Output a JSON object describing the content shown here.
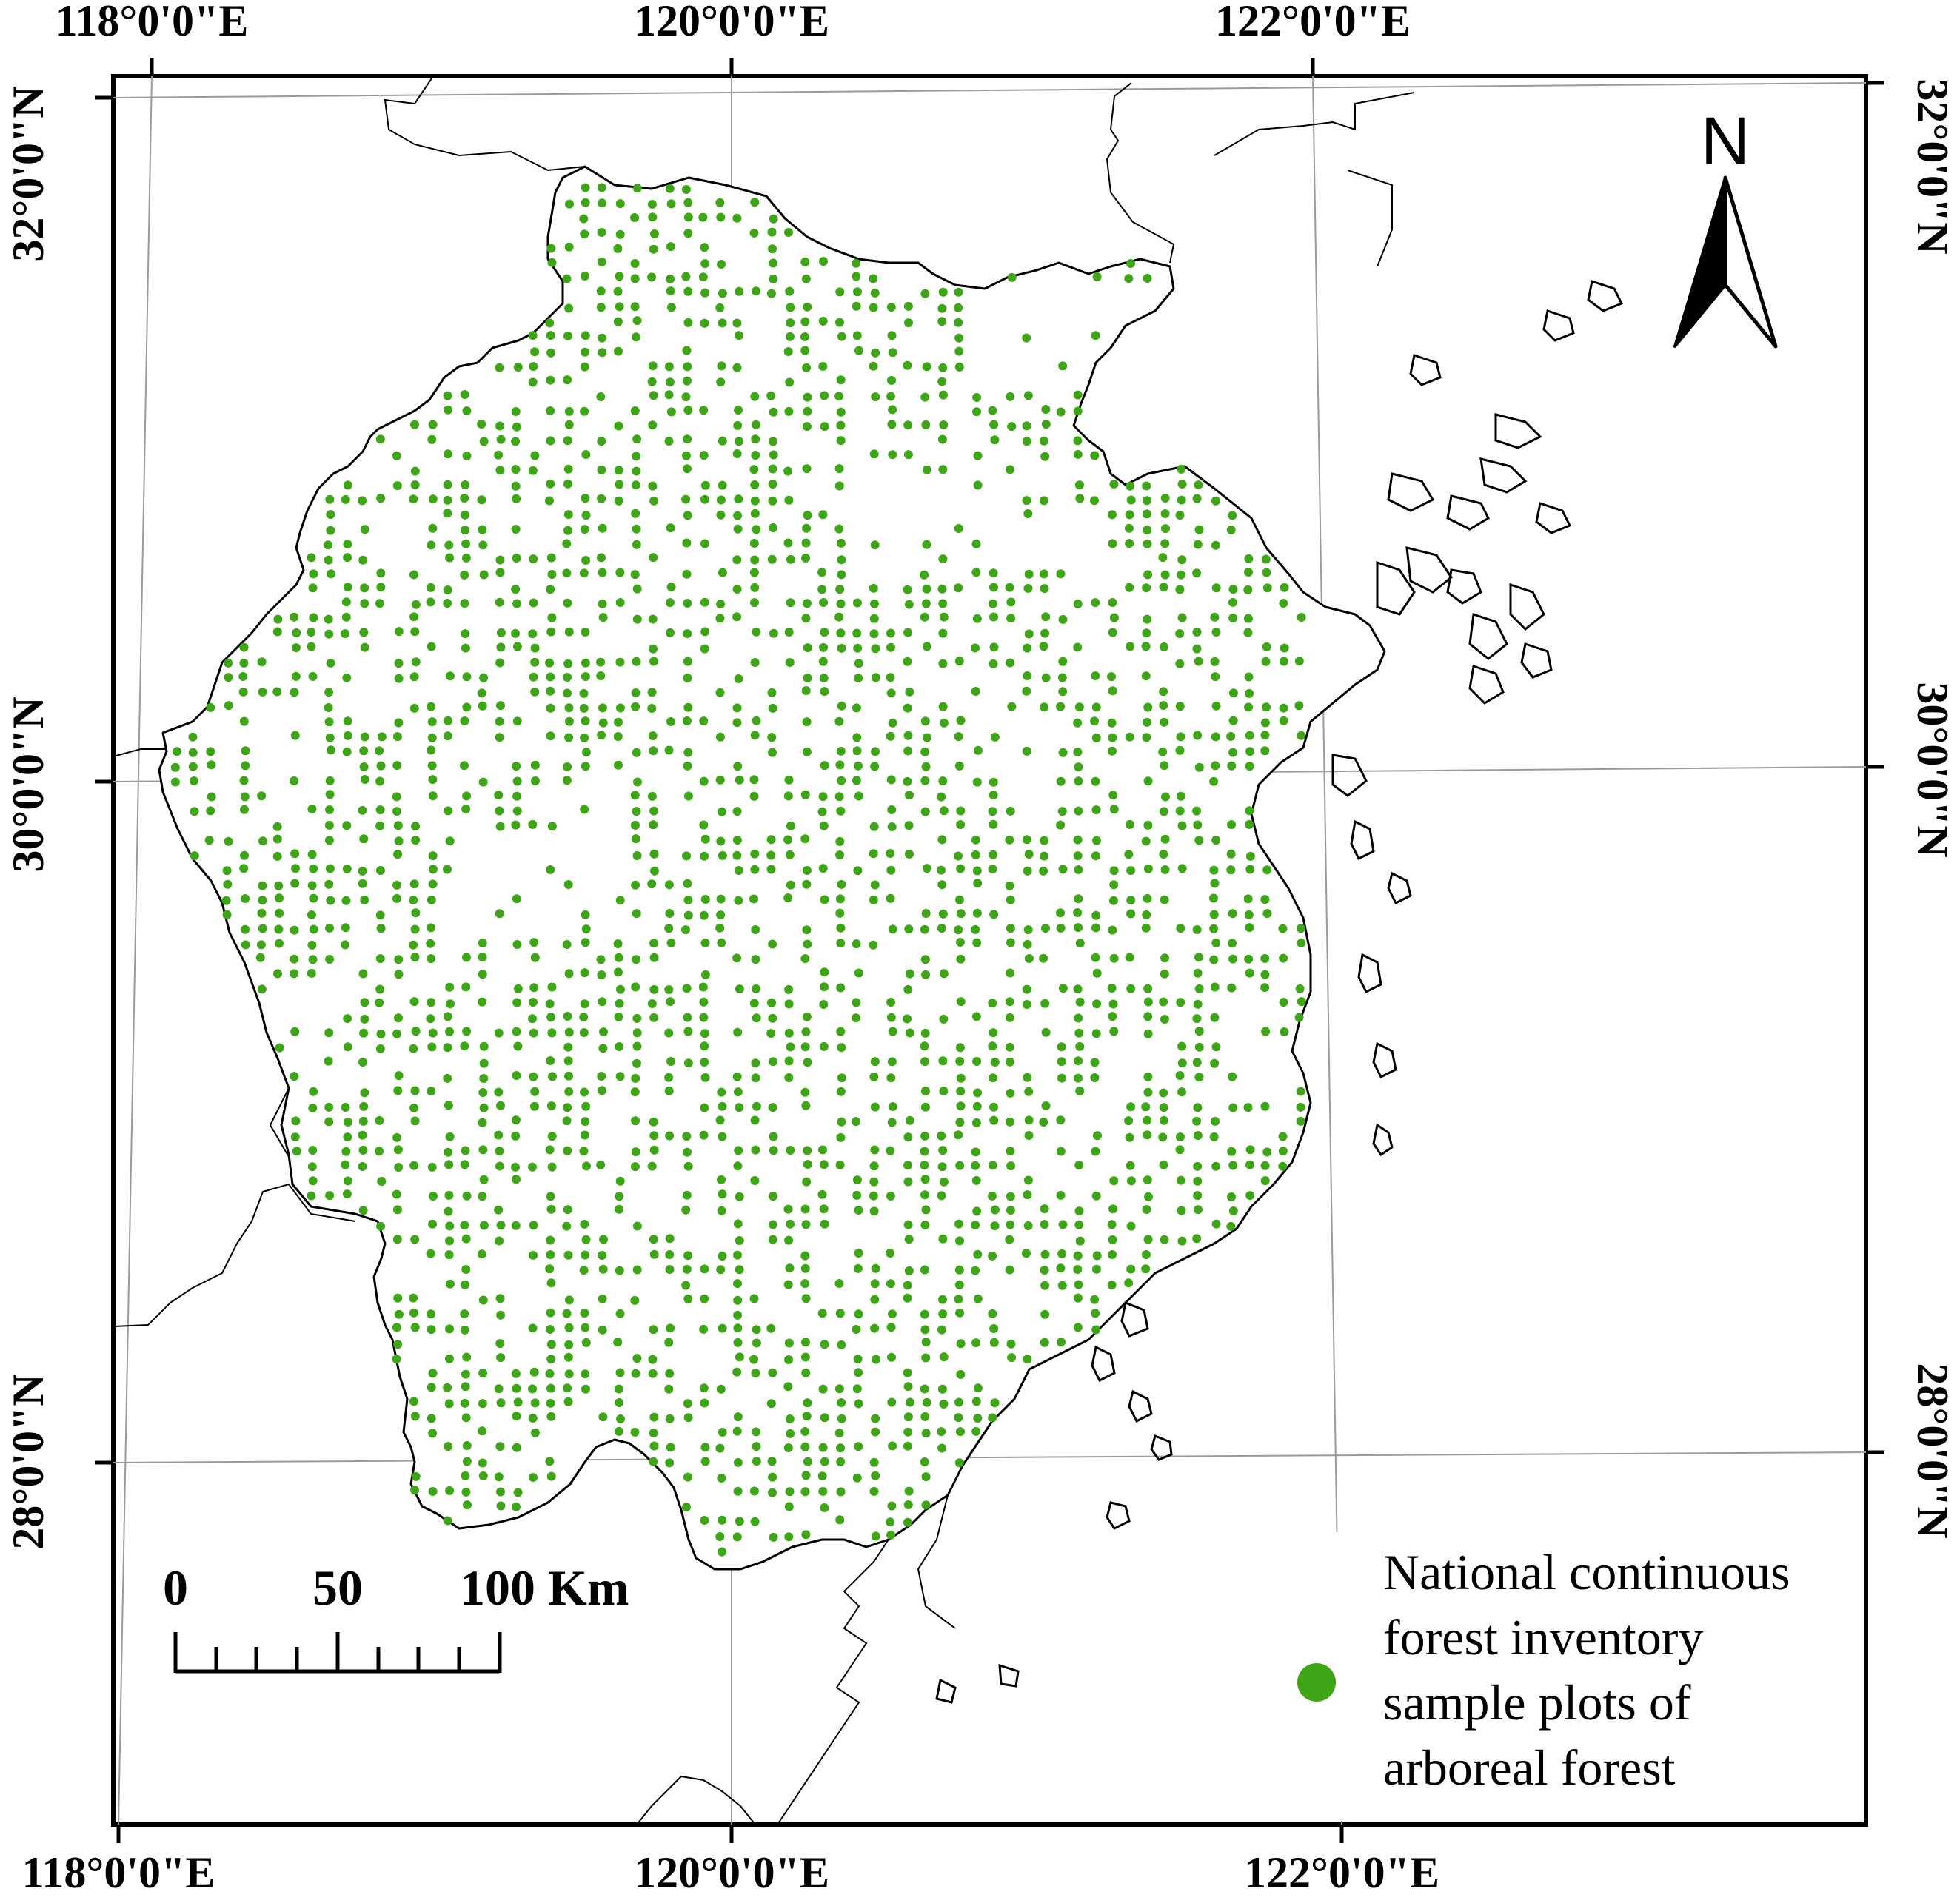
{
  "map": {
    "top_labels": [
      "118°0'0\"E",
      "120°0'0\"E",
      "122°0'0\"E"
    ],
    "bottom_labels": [
      "118°0'0\"E",
      "120°0'0\"E",
      "122°0'0\"E"
    ],
    "left_labels": [
      "32°0'0\"N",
      "30°0'0\"N",
      "28°0'0\"N"
    ],
    "right_labels": [
      "32°0'0\"N",
      "30°0'0\"N",
      "28°0'0\"N"
    ],
    "north_arrow": {
      "label": "N",
      "icon": "north-arrow-icon"
    },
    "scale_bar": {
      "labels": [
        "0",
        "50",
        "100 Km"
      ]
    },
    "legend": {
      "marker_color": "#3da516",
      "marker_icon": "green-dot-icon",
      "lines": [
        "National continuous",
        "forest inventory",
        "sample plots of",
        "arboreal forest"
      ]
    },
    "colors": {
      "sample_plot": "#3da516",
      "line": "#000000",
      "graticule": "#9a9a9a"
    }
  }
}
